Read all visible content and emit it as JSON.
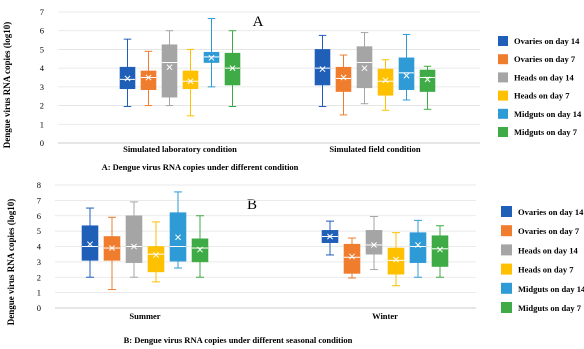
{
  "chart_data": [
    {
      "type": "box",
      "panel_letter": "A",
      "ylabel": "Dengue virus RNA copies (log10)",
      "caption": "A: Dengue virus RNA copies under different condition",
      "ylim": [
        0,
        7
      ],
      "yticks": [
        0,
        1,
        2,
        3,
        4,
        5,
        6,
        7
      ],
      "categories": [
        "Simulated laboratory condition",
        "Simulated field condition"
      ],
      "legend_position": "right",
      "series": [
        {
          "name": "Ovaries on day 14",
          "color": "#1f5fb8",
          "boxes": [
            {
              "min": 1.95,
              "q1": 2.9,
              "median": 3.4,
              "mean": 3.45,
              "q3": 4.05,
              "max": 5.55
            },
            {
              "min": 1.95,
              "q1": 3.1,
              "median": 4.0,
              "mean": 3.95,
              "q3": 5.0,
              "max": 5.75
            }
          ]
        },
        {
          "name": "Ovaries on day 7",
          "color": "#f07c2e",
          "boxes": [
            {
              "min": 2.0,
              "q1": 2.85,
              "median": 3.5,
              "mean": 3.5,
              "q3": 3.85,
              "max": 4.9
            },
            {
              "min": 1.5,
              "q1": 2.75,
              "median": 3.45,
              "mean": 3.5,
              "q3": 4.05,
              "max": 4.7
            }
          ]
        },
        {
          "name": "Heads on day 14",
          "color": "#a5a5a5",
          "boxes": [
            {
              "min": 2.0,
              "q1": 2.45,
              "median": 4.3,
              "mean": 4.05,
              "q3": 5.25,
              "max": 6.0
            },
            {
              "min": 2.1,
              "q1": 2.95,
              "median": 4.3,
              "mean": 4.0,
              "q3": 5.15,
              "max": 5.9
            }
          ]
        },
        {
          "name": "Heads on day 7",
          "color": "#ffc000",
          "boxes": [
            {
              "min": 1.45,
              "q1": 2.9,
              "median": 3.3,
              "mean": 3.3,
              "q3": 3.85,
              "max": 5.0
            },
            {
              "min": 1.75,
              "q1": 2.55,
              "median": 3.3,
              "mean": 3.35,
              "q3": 3.95,
              "max": 4.45
            }
          ]
        },
        {
          "name": "Midguts on day 14",
          "color": "#2e9bd6",
          "boxes": [
            {
              "min": 3.0,
              "q1": 4.3,
              "median": 4.6,
              "mean": 4.55,
              "q3": 4.85,
              "max": 6.65
            },
            {
              "min": 2.3,
              "q1": 2.85,
              "median": 3.75,
              "mean": 3.6,
              "q3": 4.55,
              "max": 5.8
            }
          ]
        },
        {
          "name": "Midguts on day 7",
          "color": "#3fab46",
          "boxes": [
            {
              "min": 1.95,
              "q1": 3.1,
              "median": 4.0,
              "mean": 4.0,
              "q3": 4.8,
              "max": 6.0
            },
            {
              "min": 1.8,
              "q1": 2.75,
              "median": 3.5,
              "mean": 3.4,
              "q3": 3.9,
              "max": 4.1
            }
          ]
        }
      ]
    },
    {
      "type": "box",
      "panel_letter": "B",
      "ylabel": "Dengue virus RNA copies (log10)",
      "caption": "B: Dengue virus RNA copies under different seasonal condition",
      "ylim": [
        0,
        8
      ],
      "yticks": [
        0,
        1,
        2,
        3,
        4,
        5,
        6,
        7,
        8
      ],
      "categories": [
        "Summer",
        "Winter"
      ],
      "legend_position": "right",
      "series": [
        {
          "name": "Ovaries on day 14",
          "color": "#1f5fb8",
          "boxes": [
            {
              "min": 2.0,
              "q1": 3.1,
              "median": 4.0,
              "mean": 4.15,
              "q3": 5.35,
              "max": 6.5
            },
            {
              "min": 3.45,
              "q1": 4.25,
              "median": 4.65,
              "mean": 4.65,
              "q3": 5.05,
              "max": 5.65
            }
          ]
        },
        {
          "name": "Ovaries on day 7",
          "color": "#f07c2e",
          "boxes": [
            {
              "min": 1.2,
              "q1": 3.1,
              "median": 3.9,
              "mean": 3.9,
              "q3": 4.65,
              "max": 5.9
            },
            {
              "min": 1.95,
              "q1": 2.25,
              "median": 3.3,
              "mean": 3.35,
              "q3": 4.15,
              "max": 4.55
            }
          ]
        },
        {
          "name": "Heads on day 14",
          "color": "#a5a5a5",
          "boxes": [
            {
              "min": 2.0,
              "q1": 2.95,
              "median": 4.0,
              "mean": 4.0,
              "q3": 6.0,
              "max": 6.9
            },
            {
              "min": 2.5,
              "q1": 3.5,
              "median": 4.1,
              "mean": 4.1,
              "q3": 5.05,
              "max": 5.95
            }
          ]
        },
        {
          "name": "Heads on day 7",
          "color": "#ffc000",
          "boxes": [
            {
              "min": 1.7,
              "q1": 2.35,
              "median": 3.5,
              "mean": 3.45,
              "q3": 4.0,
              "max": 5.6
            },
            {
              "min": 1.45,
              "q1": 2.2,
              "median": 3.1,
              "mean": 3.15,
              "q3": 3.9,
              "max": 4.9
            }
          ]
        },
        {
          "name": "Midguts on day 14",
          "color": "#2e9bd6",
          "boxes": [
            {
              "min": 2.6,
              "q1": 3.05,
              "median": 4.0,
              "mean": 4.6,
              "q3": 6.2,
              "max": 7.55
            },
            {
              "min": 2.0,
              "q1": 2.95,
              "median": 4.0,
              "mean": 4.1,
              "q3": 4.9,
              "max": 5.7
            }
          ]
        },
        {
          "name": "Midguts on day 7",
          "color": "#3fab46",
          "boxes": [
            {
              "min": 2.0,
              "q1": 3.0,
              "median": 3.9,
              "mean": 3.8,
              "q3": 4.5,
              "max": 6.0
            },
            {
              "min": 2.0,
              "q1": 2.7,
              "median": 3.85,
              "mean": 3.8,
              "q3": 4.7,
              "max": 5.35
            }
          ]
        }
      ]
    }
  ]
}
